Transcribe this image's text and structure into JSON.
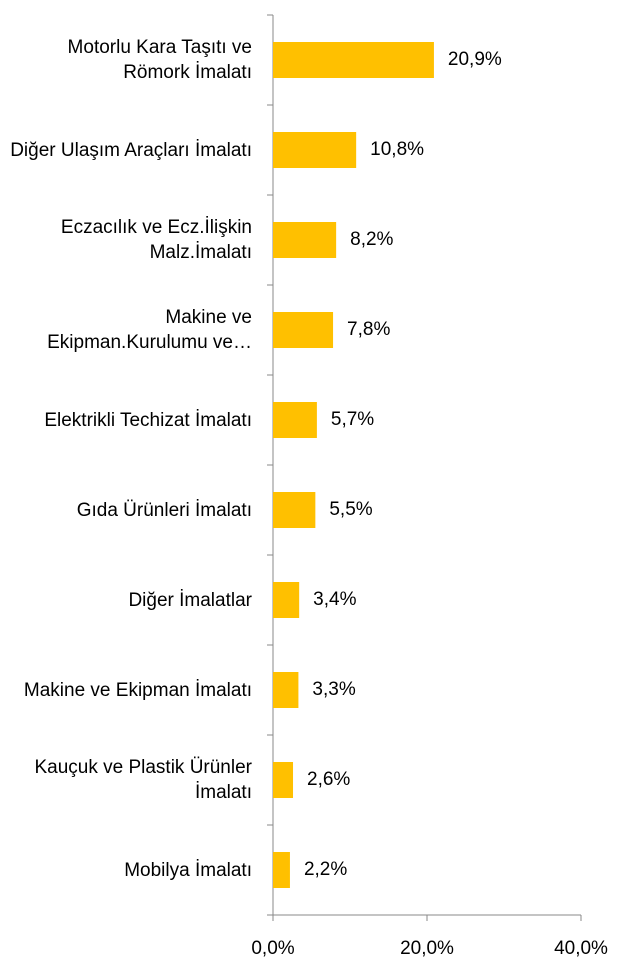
{
  "chart_data": {
    "type": "barh",
    "categories": [
      "Motorlu Kara Taşıtı ve Römork İmalatı",
      "Diğer Ulaşım Araçları İmalatı",
      "Eczacılık ve Ecz.İlişkin Malz.İmalatı",
      "Makine ve Ekipman.Kurulumu ve…",
      "Elektrikli Techizat İmalatı",
      "Gıda Ürünleri İmalatı",
      "Diğer İmalatlar",
      "Makine ve Ekipman İmalatı",
      "Kauçuk ve Plastik Ürünler İmalatı",
      "Mobilya İmalatı"
    ],
    "values": [
      20.9,
      10.8,
      8.2,
      7.8,
      5.7,
      5.5,
      3.4,
      3.3,
      2.6,
      2.2
    ],
    "value_labels": [
      "20,9%",
      "10,8%",
      "8,2%",
      "7,8%",
      "5,7%",
      "5,5%",
      "3,4%",
      "3,3%",
      "2,6%",
      "2,2%"
    ],
    "color": "#ffc000",
    "xlim": [
      0,
      40
    ],
    "xticks": [
      {
        "value": 0,
        "label": "0,0%"
      },
      {
        "value": 20,
        "label": "20,0%"
      },
      {
        "value": 40,
        "label": "40,0%"
      }
    ]
  }
}
